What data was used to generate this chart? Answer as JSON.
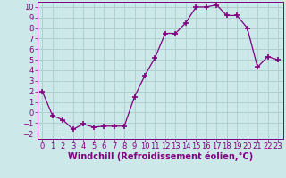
{
  "x": [
    0,
    1,
    2,
    3,
    4,
    5,
    6,
    7,
    8,
    9,
    10,
    11,
    12,
    13,
    14,
    15,
    16,
    17,
    18,
    19,
    20,
    21,
    22,
    23
  ],
  "y": [
    2,
    -0.3,
    -0.7,
    -1.6,
    -1.1,
    -1.4,
    -1.3,
    -1.3,
    -1.3,
    1.5,
    3.5,
    5.2,
    7.5,
    7.5,
    8.5,
    10.0,
    10.0,
    10.2,
    9.2,
    9.2,
    8.0,
    4.3,
    5.3,
    5.0
  ],
  "line_color": "#800080",
  "marker": "+",
  "marker_size": 4,
  "marker_linewidth": 1.2,
  "bg_color": "#cce8e8",
  "grid_color": "#aacccc",
  "xlabel": "Windchill (Refroidissement éolien,°C)",
  "xlabel_color": "#800080",
  "tick_color": "#800080",
  "ylim": [
    -2.5,
    10.5
  ],
  "xlim": [
    -0.5,
    23.5
  ],
  "yticks": [
    -2,
    -1,
    0,
    1,
    2,
    3,
    4,
    5,
    6,
    7,
    8,
    9,
    10
  ],
  "xticks": [
    0,
    1,
    2,
    3,
    4,
    5,
    6,
    7,
    8,
    9,
    10,
    11,
    12,
    13,
    14,
    15,
    16,
    17,
    18,
    19,
    20,
    21,
    22,
    23
  ],
  "font_size": 6,
  "xlabel_fontsize": 7
}
